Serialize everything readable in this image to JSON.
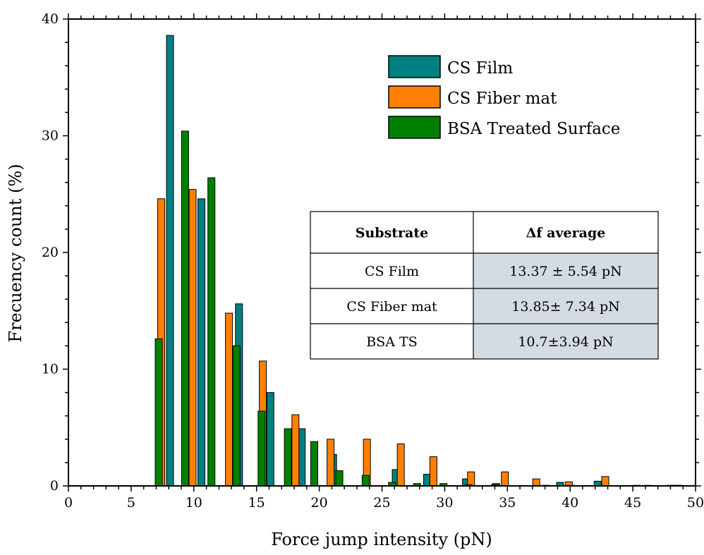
{
  "chart_data": {
    "type": "bar",
    "xlabel": "Force jump intensity (pN)",
    "ylabel": "Frecuency count (%)",
    "xlim": [
      0,
      50
    ],
    "ylim": [
      0,
      40
    ],
    "x_ticks": [
      0,
      5,
      10,
      15,
      20,
      25,
      30,
      35,
      40,
      45,
      50
    ],
    "y_ticks": [
      0,
      10,
      20,
      30,
      40
    ],
    "grid": false,
    "legend_position": "top-right",
    "series": [
      {
        "name": "CS Film",
        "color": "#008080",
        "x": [
          8.1,
          10.6,
          13.6,
          16.1,
          18.6,
          21.1,
          26.1,
          28.6,
          31.7,
          34.1,
          39.2,
          42.2,
          48.7
        ],
        "values": [
          38.6,
          24.6,
          15.6,
          8.0,
          4.9,
          2.7,
          1.4,
          1.0,
          0.6,
          0.2,
          0.3,
          0.4,
          0.05
        ]
      },
      {
        "name": "CS Fiber mat",
        "color": "#ff8000",
        "x": [
          7.4,
          9.9,
          12.8,
          15.5,
          18.1,
          20.9,
          23.8,
          26.5,
          29.1,
          32.1,
          34.8,
          37.3,
          39.9,
          42.8,
          45.3,
          48.0
        ],
        "values": [
          24.6,
          25.4,
          14.8,
          10.7,
          6.1,
          4.0,
          4.0,
          3.6,
          2.5,
          1.2,
          1.2,
          0.6,
          0.35,
          0.8,
          0.05,
          0.05
        ]
      },
      {
        "name": "BSA Treated Surface",
        "color": "#008000",
        "x": [
          7.2,
          9.3,
          11.4,
          13.4,
          15.4,
          17.5,
          19.6,
          21.6,
          23.7,
          25.8,
          27.8,
          29.9,
          31.9,
          34.0,
          38.1,
          40.1,
          46.2,
          48.3
        ],
        "values": [
          12.6,
          30.4,
          26.4,
          12.0,
          6.4,
          4.9,
          3.8,
          1.3,
          0.9,
          0.3,
          0.2,
          0.2,
          0.1,
          0.1,
          0.05,
          0.05,
          0.05,
          0.05
        ]
      }
    ]
  },
  "table": {
    "headers": [
      "Substrate",
      "Δf average"
    ],
    "rows": [
      [
        "CS Film",
        "13.37 ± 5.54 pN"
      ],
      [
        "CS Fiber mat",
        "13.85± 7.34 pN"
      ],
      [
        "BSA TS",
        "10.7±3.94 pN"
      ]
    ],
    "value_cell_color": "#d5dbe3"
  }
}
